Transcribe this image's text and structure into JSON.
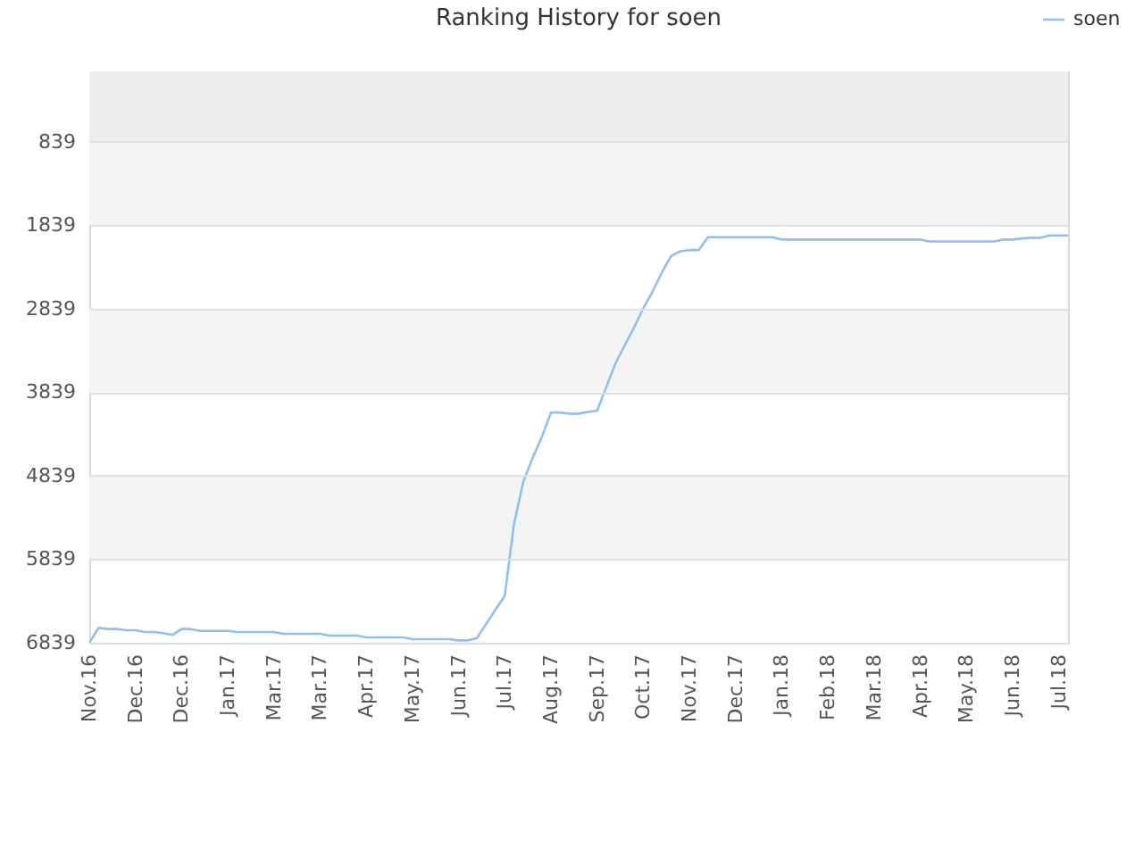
{
  "chart_data": {
    "type": "line",
    "title": "Ranking History for soen",
    "categories": [
      "Nov.16",
      null,
      null,
      null,
      null,
      "Dec.16",
      null,
      null,
      null,
      null,
      "Dec.16",
      null,
      null,
      null,
      null,
      "Jan.17",
      null,
      null,
      null,
      null,
      "Mar.17",
      null,
      null,
      null,
      null,
      "Mar.17",
      null,
      null,
      null,
      null,
      "Apr.17",
      null,
      null,
      null,
      null,
      "May.17",
      null,
      null,
      null,
      null,
      "Jun.17",
      null,
      null,
      null,
      null,
      "Jul.17",
      null,
      null,
      null,
      null,
      "Aug.17",
      null,
      null,
      null,
      null,
      "Sep.17",
      null,
      null,
      null,
      null,
      "Oct.17",
      null,
      null,
      null,
      null,
      "Nov.17",
      null,
      null,
      null,
      null,
      "Dec.17",
      null,
      null,
      null,
      null,
      "Jan.18",
      null,
      null,
      null,
      null,
      "Feb.18",
      null,
      null,
      null,
      null,
      "Mar.18",
      null,
      null,
      null,
      null,
      "Apr.18",
      null,
      null,
      null,
      null,
      "May.18",
      null,
      null,
      null,
      null,
      "Jun.18",
      null,
      null,
      null,
      null,
      "Jul.18",
      null
    ],
    "series": [
      {
        "name": "soen",
        "color": "#8fbff0",
        "values": [
          6839,
          6660,
          6675,
          6675,
          6690,
          6690,
          6711,
          6711,
          6725,
          6746,
          6675,
          6675,
          6697,
          6697,
          6697,
          6697,
          6711,
          6711,
          6711,
          6711,
          6711,
          6732,
          6732,
          6732,
          6732,
          6732,
          6754,
          6754,
          6754,
          6754,
          6775,
          6775,
          6775,
          6775,
          6775,
          6796,
          6796,
          6796,
          6796,
          6796,
          6811,
          6811,
          6782,
          6611,
          6441,
          6277,
          5414,
          4916,
          4631,
          4382,
          4083,
          4083,
          4097,
          4097,
          4076,
          4062,
          3777,
          3492,
          3278,
          3065,
          2837,
          2637,
          2410,
          2210,
          2153,
          2139,
          2139,
          1985,
          1985,
          1985,
          1985,
          1985,
          1985,
          1985,
          1985,
          2013,
          2013,
          2013,
          2013,
          2013,
          2013,
          2013,
          2013,
          2013,
          2013,
          2013,
          2013,
          2013,
          2013,
          2013,
          2013,
          2035,
          2035,
          2035,
          2035,
          2035,
          2035,
          2035,
          2035,
          2013,
          2013,
          2000,
          1992,
          1992,
          1963,
          1963,
          1963
        ]
      }
    ],
    "ylim": [
      6839,
      0
    ],
    "yticks": [
      839,
      1839,
      2839,
      3839,
      4839,
      5839,
      6839
    ],
    "grid": "y",
    "legend": "top right",
    "bands": [
      {
        "axis": "y",
        "from": 0,
        "to": 839,
        "color": "#ededed"
      },
      {
        "axis": "y",
        "from": 839,
        "to": 1839,
        "color": "#f4f4f4"
      },
      {
        "axis": "y",
        "from": 2839,
        "to": 3839,
        "color": "#f4f4f4"
      },
      {
        "axis": "y",
        "from": 4839,
        "to": 5839,
        "color": "#f4f4f4"
      }
    ]
  }
}
